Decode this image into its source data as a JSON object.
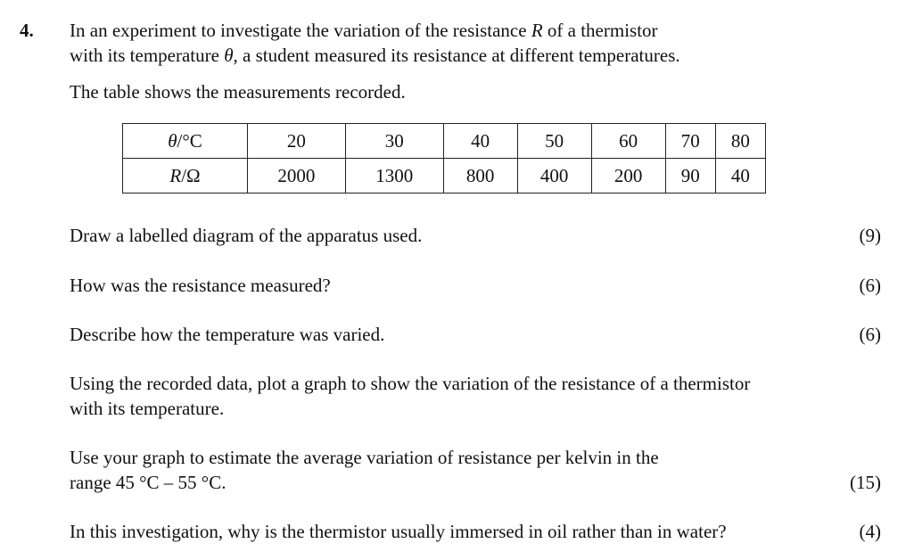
{
  "question": {
    "number": "4.",
    "intro_line1": "In an experiment to investigate the variation of the resistance R of a thermistor",
    "intro_line2": "with its temperature θ, a student measured its resistance at different temperatures.",
    "table_note": "The table shows the measurements recorded."
  },
  "table": {
    "temp_header": "θ/°C",
    "res_header": "R/Ω",
    "temperatures": [
      "20",
      "30",
      "40",
      "50",
      "60",
      "70",
      "80"
    ],
    "resistances": [
      "2000",
      "1300",
      "800",
      "400",
      "200",
      "90",
      "40"
    ]
  },
  "parts": [
    {
      "text": "Draw a labelled diagram of the apparatus used.",
      "marks": "(9)"
    },
    {
      "text": "How was the resistance measured?",
      "marks": "(6)"
    },
    {
      "text": "Describe how the temperature was varied.",
      "marks": "(6)"
    },
    {
      "line1": "Using the recorded data, plot a graph to show the variation of the resistance of a thermistor",
      "line2": "with its temperature."
    },
    {
      "line1": "Use your graph to estimate the average variation of resistance per kelvin in the",
      "line2": "range 45 °C – 55 °C.",
      "marks": "(15)"
    },
    {
      "text": "In this investigation, why is the thermistor usually immersed in oil rather than in water?",
      "marks": "(4)"
    }
  ]
}
